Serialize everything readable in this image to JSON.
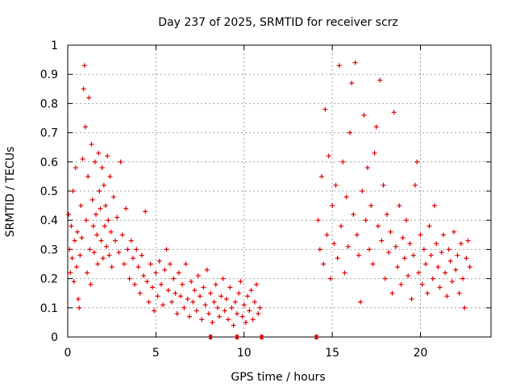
{
  "chart_data": {
    "type": "scatter",
    "title": "Day 237 of 2025, SRMTID for receiver scrz",
    "xlabel": "GPS time / hours",
    "ylabel": "SRMTID / TECUs",
    "xlim": [
      0,
      24
    ],
    "ylim": [
      0,
      1
    ],
    "xticks": [
      0,
      5,
      10,
      15,
      20
    ],
    "yticks": [
      0,
      0.1,
      0.2,
      0.3,
      0.4,
      0.5,
      0.6,
      0.7,
      0.8,
      0.9,
      1
    ],
    "ytick_labels": [
      "0",
      "0.1",
      "0.2",
      "0.3",
      "0.4",
      "0.5",
      "0.6",
      "0.7",
      "0.8",
      "0.9",
      "1"
    ],
    "grid": true,
    "marker": "plus",
    "color": "#e00000",
    "series": [
      {
        "name": "SRMTID",
        "points": [
          [
            0.05,
            0.42
          ],
          [
            0.1,
            0.3
          ],
          [
            0.15,
            0.22
          ],
          [
            0.2,
            0.38
          ],
          [
            0.25,
            0.27
          ],
          [
            0.3,
            0.5
          ],
          [
            0.35,
            0.19
          ],
          [
            0.4,
            0.33
          ],
          [
            0.45,
            0.58
          ],
          [
            0.5,
            0.24
          ],
          [
            0.55,
            0.36
          ],
          [
            0.6,
            0.13
          ],
          [
            0.65,
            0.1
          ],
          [
            0.7,
            0.28
          ],
          [
            0.75,
            0.45
          ],
          [
            0.8,
            0.34
          ],
          [
            0.85,
            0.61
          ],
          [
            0.9,
            0.85
          ],
          [
            0.95,
            0.93
          ],
          [
            1.0,
            0.72
          ],
          [
            1.05,
            0.4
          ],
          [
            1.1,
            0.22
          ],
          [
            1.15,
            0.55
          ],
          [
            1.2,
            0.82
          ],
          [
            1.25,
            0.3
          ],
          [
            1.3,
            0.18
          ],
          [
            1.35,
            0.66
          ],
          [
            1.4,
            0.47
          ],
          [
            1.45,
            0.38
          ],
          [
            1.5,
            0.29
          ],
          [
            1.55,
            0.6
          ],
          [
            1.6,
            0.42
          ],
          [
            1.65,
            0.35
          ],
          [
            1.7,
            0.25
          ],
          [
            1.75,
            0.63
          ],
          [
            1.8,
            0.5
          ],
          [
            1.85,
            0.44
          ],
          [
            1.9,
            0.33
          ],
          [
            1.95,
            0.58
          ],
          [
            2.0,
            0.27
          ],
          [
            2.05,
            0.52
          ],
          [
            2.1,
            0.38
          ],
          [
            2.15,
            0.45
          ],
          [
            2.2,
            0.31
          ],
          [
            2.25,
            0.62
          ],
          [
            2.3,
            0.4
          ],
          [
            2.35,
            0.28
          ],
          [
            2.4,
            0.55
          ],
          [
            2.45,
            0.36
          ],
          [
            2.5,
            0.24
          ],
          [
            2.6,
            0.48
          ],
          [
            2.7,
            0.33
          ],
          [
            2.8,
            0.41
          ],
          [
            2.9,
            0.29
          ],
          [
            3.0,
            0.6
          ],
          [
            3.1,
            0.35
          ],
          [
            3.2,
            0.25
          ],
          [
            3.3,
            0.44
          ],
          [
            3.4,
            0.3
          ],
          [
            3.5,
            0.2
          ],
          [
            3.6,
            0.33
          ],
          [
            3.7,
            0.27
          ],
          [
            3.8,
            0.18
          ],
          [
            3.9,
            0.3
          ],
          [
            4.0,
            0.24
          ],
          [
            4.1,
            0.15
          ],
          [
            4.2,
            0.28
          ],
          [
            4.3,
            0.21
          ],
          [
            4.4,
            0.43
          ],
          [
            4.5,
            0.19
          ],
          [
            4.6,
            0.12
          ],
          [
            4.7,
            0.25
          ],
          [
            4.8,
            0.17
          ],
          [
            4.9,
            0.09
          ],
          [
            5.0,
            0.22
          ],
          [
            5.1,
            0.14
          ],
          [
            5.2,
            0.26
          ],
          [
            5.3,
            0.18
          ],
          [
            5.4,
            0.11
          ],
          [
            5.5,
            0.23
          ],
          [
            5.6,
            0.3
          ],
          [
            5.7,
            0.16
          ],
          [
            5.8,
            0.25
          ],
          [
            5.9,
            0.12
          ],
          [
            6.0,
            0.2
          ],
          [
            6.1,
            0.15
          ],
          [
            6.2,
            0.08
          ],
          [
            6.3,
            0.22
          ],
          [
            6.4,
            0.14
          ],
          [
            6.5,
            0.18
          ],
          [
            6.6,
            0.1
          ],
          [
            6.7,
            0.25
          ],
          [
            6.8,
            0.13
          ],
          [
            6.9,
            0.07
          ],
          [
            7.0,
            0.19
          ],
          [
            7.1,
            0.12
          ],
          [
            7.2,
            0.16
          ],
          [
            7.3,
            0.09
          ],
          [
            7.4,
            0.21
          ],
          [
            7.5,
            0.14
          ],
          [
            7.6,
            0.06
          ],
          [
            7.7,
            0.17
          ],
          [
            7.8,
            0.11
          ],
          [
            7.9,
            0.23
          ],
          [
            8.0,
            0.08
          ],
          [
            8.1,
            0.15
          ],
          [
            8.2,
            0.05
          ],
          [
            8.3,
            0.12
          ],
          [
            8.4,
            0.18
          ],
          [
            8.5,
            0.1
          ],
          [
            8.6,
            0.07
          ],
          [
            8.7,
            0.14
          ],
          [
            8.8,
            0.2
          ],
          [
            8.9,
            0.09
          ],
          [
            9.0,
            0.13
          ],
          [
            9.1,
            0.06
          ],
          [
            9.2,
            0.17
          ],
          [
            9.3,
            0.1
          ],
          [
            9.4,
            0.04
          ],
          [
            9.5,
            0.12
          ],
          [
            9.6,
            0.08
          ],
          [
            9.7,
            0.15
          ],
          [
            9.8,
            0.19
          ],
          [
            9.9,
            0.07
          ],
          [
            10.0,
            0.11
          ],
          [
            10.1,
            0.05
          ],
          [
            10.2,
            0.14
          ],
          [
            10.3,
            0.09
          ],
          [
            10.4,
            0.16
          ],
          [
            10.5,
            0.06
          ],
          [
            10.6,
            0.12
          ],
          [
            10.7,
            0.18
          ],
          [
            10.8,
            0.08
          ],
          [
            10.9,
            0.1
          ],
          [
            14.2,
            0.4
          ],
          [
            14.3,
            0.3
          ],
          [
            14.4,
            0.55
          ],
          [
            14.5,
            0.25
          ],
          [
            14.6,
            0.78
          ],
          [
            14.7,
            0.35
          ],
          [
            14.8,
            0.62
          ],
          [
            14.9,
            0.2
          ],
          [
            15.0,
            0.45
          ],
          [
            15.1,
            0.32
          ],
          [
            15.2,
            0.52
          ],
          [
            15.3,
            0.27
          ],
          [
            15.4,
            0.93
          ],
          [
            15.5,
            0.38
          ],
          [
            15.6,
            0.6
          ],
          [
            15.7,
            0.22
          ],
          [
            15.8,
            0.48
          ],
          [
            15.9,
            0.31
          ],
          [
            16.0,
            0.7
          ],
          [
            16.1,
            0.87
          ],
          [
            16.2,
            0.42
          ],
          [
            16.3,
            0.94
          ],
          [
            16.4,
            0.35
          ],
          [
            16.5,
            0.28
          ],
          [
            16.6,
            0.12
          ],
          [
            16.7,
            0.5
          ],
          [
            16.8,
            0.76
          ],
          [
            16.9,
            0.4
          ],
          [
            17.0,
            0.58
          ],
          [
            17.1,
            0.3
          ],
          [
            17.2,
            0.45
          ],
          [
            17.3,
            0.25
          ],
          [
            17.4,
            0.63
          ],
          [
            17.5,
            0.72
          ],
          [
            17.6,
            0.38
          ],
          [
            17.7,
            0.88
          ],
          [
            17.8,
            0.33
          ],
          [
            17.9,
            0.52
          ],
          [
            18.0,
            0.2
          ],
          [
            18.1,
            0.42
          ],
          [
            18.2,
            0.29
          ],
          [
            18.3,
            0.36
          ],
          [
            18.4,
            0.15
          ],
          [
            18.5,
            0.77
          ],
          [
            18.6,
            0.31
          ],
          [
            18.7,
            0.24
          ],
          [
            18.8,
            0.45
          ],
          [
            18.9,
            0.18
          ],
          [
            19.0,
            0.34
          ],
          [
            19.1,
            0.27
          ],
          [
            19.2,
            0.4
          ],
          [
            19.3,
            0.21
          ],
          [
            19.4,
            0.32
          ],
          [
            19.5,
            0.13
          ],
          [
            19.6,
            0.28
          ],
          [
            19.7,
            0.52
          ],
          [
            19.8,
            0.6
          ],
          [
            19.9,
            0.22
          ],
          [
            20.0,
            0.35
          ],
          [
            20.1,
            0.18
          ],
          [
            20.2,
            0.3
          ],
          [
            20.3,
            0.25
          ],
          [
            20.4,
            0.15
          ],
          [
            20.5,
            0.38
          ],
          [
            20.6,
            0.28
          ],
          [
            20.7,
            0.2
          ],
          [
            20.8,
            0.45
          ],
          [
            20.9,
            0.32
          ],
          [
            21.0,
            0.24
          ],
          [
            21.1,
            0.17
          ],
          [
            21.2,
            0.29
          ],
          [
            21.3,
            0.35
          ],
          [
            21.4,
            0.22
          ],
          [
            21.5,
            0.14
          ],
          [
            21.6,
            0.3
          ],
          [
            21.7,
            0.26
          ],
          [
            21.8,
            0.19
          ],
          [
            21.9,
            0.36
          ],
          [
            22.0,
            0.23
          ],
          [
            22.1,
            0.28
          ],
          [
            22.2,
            0.15
          ],
          [
            22.3,
            0.32
          ],
          [
            22.4,
            0.2
          ],
          [
            22.5,
            0.1
          ],
          [
            22.6,
            0.27
          ],
          [
            22.7,
            0.33
          ],
          [
            22.8,
            0.24
          ]
        ]
      }
    ],
    "axis_markers_x": [
      8.1,
      9.6,
      11.0,
      14.1
    ]
  }
}
